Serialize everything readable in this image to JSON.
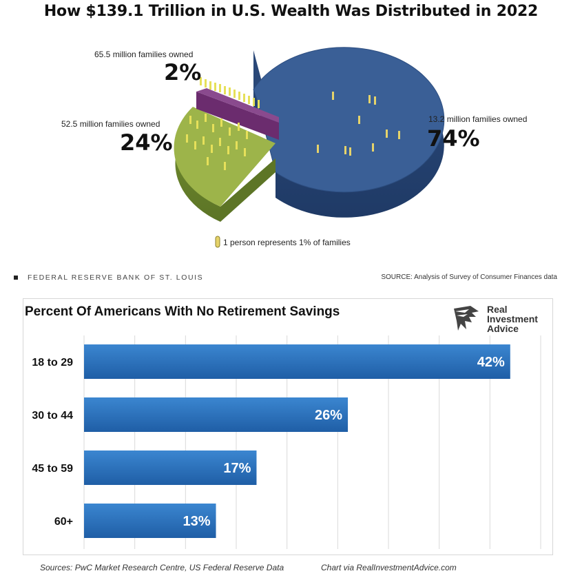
{
  "chart_data": [
    {
      "type": "pie",
      "title": "How $139.1 Trillion in U.S. Wealth Was Distributed in 2022",
      "slices": [
        {
          "label": "13.2 million families owned",
          "value": 74,
          "display": "74%",
          "color": "#3a5f96"
        },
        {
          "label": "52.5 million families owned",
          "value": 24,
          "display": "24%",
          "color": "#9db44a"
        },
        {
          "label": "65.5 million families owned",
          "value": 2,
          "display": "2%",
          "color": "#6b2c6e"
        }
      ],
      "legend": "1 person represents 1% of families",
      "credit": "FEDERAL RESERVE BANK OF ST. LOUIS",
      "source": "SOURCE: Analysis of Survey of Consumer Finances data"
    },
    {
      "type": "bar",
      "orientation": "horizontal",
      "title": "Percent Of Americans With No Retirement Savings",
      "categories": [
        "18 to 29",
        "30 to 44",
        "45 to 59",
        "60+"
      ],
      "values": [
        42,
        26,
        17,
        13
      ],
      "value_labels": [
        "42%",
        "26%",
        "17%",
        "13%"
      ],
      "xlim": [
        0,
        45
      ],
      "grid": true,
      "bar_color": "#2f74c0"
    }
  ],
  "logo": {
    "line1": "Real",
    "line2": "Investment",
    "line3": "Advice"
  },
  "footer": {
    "sources": "Sources: PwC Market Research Centre, US Federal Reserve Data",
    "chart_via": "Chart via RealInvestmentAdvice.com"
  }
}
